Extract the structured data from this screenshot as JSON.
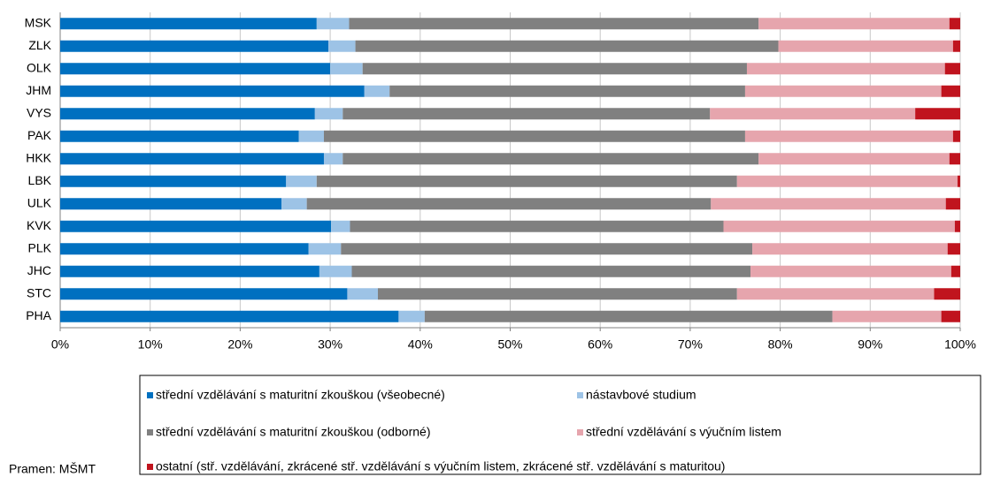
{
  "chart_data": {
    "type": "stacked_hbar",
    "categories": [
      "MSK",
      "ZLK",
      "OLK",
      "JHM",
      "VYS",
      "PAK",
      "HKK",
      "LBK",
      "ULK",
      "KVK",
      "PLK",
      "JHC",
      "STC",
      "PHA"
    ],
    "series": [
      {
        "name": "střední vzdělávání s maturitní zkouškou (všeobecné)",
        "color": "#0070c0",
        "values": [
          28.5,
          29.8,
          30.0,
          33.8,
          28.3,
          26.5,
          29.3,
          25.1,
          24.6,
          30.1,
          27.6,
          28.8,
          31.9,
          37.6
        ]
      },
      {
        "name": "nástavbové studium",
        "color": "#9dc3e6",
        "values": [
          3.6,
          3.0,
          3.6,
          2.8,
          3.1,
          2.8,
          2.1,
          3.4,
          2.8,
          2.1,
          3.6,
          3.6,
          3.4,
          2.9
        ]
      },
      {
        "name": "střední vzdělávání s maturitní zkouškou (odborné)",
        "color": "#808080",
        "values": [
          45.5,
          47.0,
          42.7,
          39.5,
          40.8,
          46.8,
          46.2,
          46.7,
          44.9,
          41.5,
          45.7,
          44.3,
          39.9,
          45.3
        ]
      },
      {
        "name": "střední vzdělávání s výučním listem",
        "color": "#e6a5ad",
        "values": [
          21.2,
          19.4,
          22.0,
          21.8,
          22.8,
          23.1,
          21.2,
          24.5,
          26.1,
          25.7,
          21.7,
          22.3,
          21.9,
          12.1
        ]
      },
      {
        "name": "ostatní  (stř. vzdělávání, zkrácené stř. vzdělávání s výučním listem,  zkrácené stř. vzdělávání s maturitou)",
        "color": "#c0141e",
        "values": [
          1.2,
          0.8,
          1.7,
          2.1,
          5.0,
          0.8,
          1.2,
          0.3,
          1.6,
          0.6,
          1.4,
          1.0,
          2.9,
          2.1
        ]
      }
    ],
    "xlim": [
      0,
      100
    ],
    "xticks": [
      {
        "value": 0,
        "label": "0%"
      },
      {
        "value": 10,
        "label": "10%"
      },
      {
        "value": 20,
        "label": "20%"
      },
      {
        "value": 30,
        "label": "30%"
      },
      {
        "value": 40,
        "label": "40%"
      },
      {
        "value": 50,
        "label": "50%"
      },
      {
        "value": 60,
        "label": "60%"
      },
      {
        "value": 70,
        "label": "70%"
      },
      {
        "value": 80,
        "label": "80%"
      },
      {
        "value": 90,
        "label": "90%"
      },
      {
        "value": 100,
        "label": "100%"
      }
    ],
    "grid": true,
    "source": "Pramen: MŠMT"
  }
}
